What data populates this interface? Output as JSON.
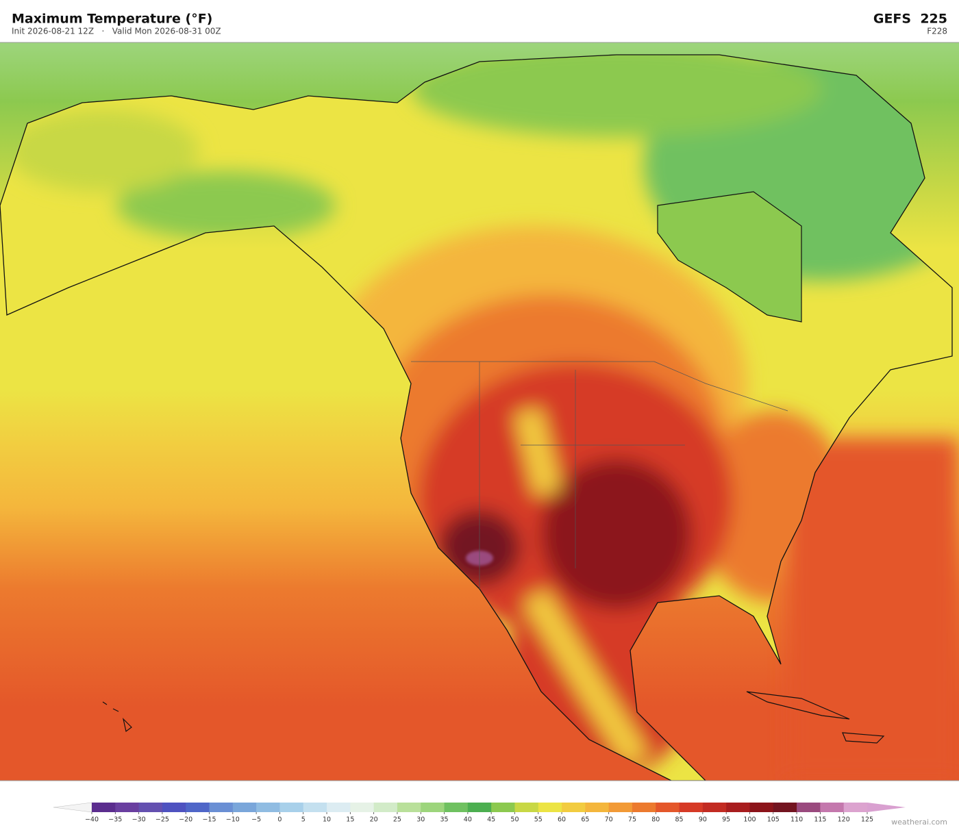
{
  "header": {
    "title": "Maximum Temperature  (°F)",
    "subtitle": "Init 2026-08-21 12Z   ·   Valid Mon 2026-08-31 00Z",
    "model": "GEFS  225",
    "forecast_hour": "F228"
  },
  "colorbar": {
    "ticks": [
      {
        "value": -40,
        "label": "−40"
      },
      {
        "value": -35,
        "label": "−35"
      },
      {
        "value": -30,
        "label": "−30"
      },
      {
        "value": -25,
        "label": "−25"
      },
      {
        "value": -20,
        "label": "−20"
      },
      {
        "value": -15,
        "label": "−15"
      },
      {
        "value": -10,
        "label": "−10"
      },
      {
        "value": -5,
        "label": "−5"
      },
      0,
      5,
      10,
      15,
      20,
      25,
      30,
      35,
      40,
      45,
      50,
      55,
      60,
      65,
      70,
      75,
      80,
      85,
      90,
      95,
      100,
      105,
      110,
      115,
      120,
      125
    ],
    "colors": [
      "#5b2d8e",
      "#6a3fa0",
      "#6450b0",
      "#4e52c0",
      "#4f66c8",
      "#6a8fd4",
      "#7aa6da",
      "#90bce2",
      "#a8d0ea",
      "#c4e0ef",
      "#dcecf2",
      "#e6f2e6",
      "#d2ebc8",
      "#b9e09a",
      "#9dd57c",
      "#6fc160",
      "#4caf50",
      "#8cc94f",
      "#c8d845",
      "#ece444",
      "#f2cc40",
      "#f4b63c",
      "#f29a36",
      "#ec7a2e",
      "#e4572a",
      "#d63a26",
      "#c22b22",
      "#a81d1e",
      "#8c141a",
      "#731420",
      "#9a4a7e",
      "#c478ad",
      "#dca3cf"
    ],
    "under_color": "#f4f4f4",
    "over_color": "#d9a0d0"
  },
  "watermark": "weatherai.com"
}
